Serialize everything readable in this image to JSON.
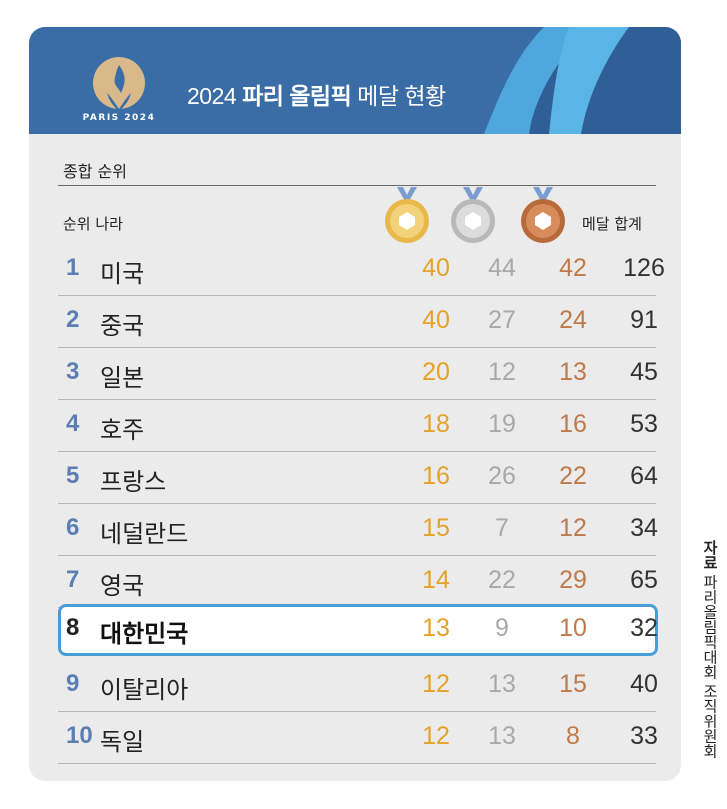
{
  "header": {
    "logo_text": "PARIS 2024",
    "title_prefix": "2024 ",
    "title_bold": "파리 올림픽",
    "title_suffix": " 메달 현황"
  },
  "section_label": "종합 순위",
  "columns": {
    "rank_country": "순위  나라",
    "total": "메달 합계"
  },
  "colors": {
    "gold": "#e6a12a",
    "silver": "#a8a8a8",
    "bronze": "#bf7a4a",
    "rank": "#5b7fb4",
    "highlight_border": "#4a9ed8"
  },
  "source": {
    "label": "자료",
    "text": "파리올림픽대회 조직위원회"
  },
  "chart_data": {
    "type": "table",
    "columns": [
      "순위",
      "나라",
      "금",
      "은",
      "동",
      "메달 합계"
    ],
    "rows": [
      {
        "rank": "1",
        "country": "미국",
        "gold": "40",
        "silver": "44",
        "bronze": "42",
        "total": "126"
      },
      {
        "rank": "2",
        "country": "중국",
        "gold": "40",
        "silver": "27",
        "bronze": "24",
        "total": "91"
      },
      {
        "rank": "3",
        "country": "일본",
        "gold": "20",
        "silver": "12",
        "bronze": "13",
        "total": "45"
      },
      {
        "rank": "4",
        "country": "호주",
        "gold": "18",
        "silver": "19",
        "bronze": "16",
        "total": "53"
      },
      {
        "rank": "5",
        "country": "프랑스",
        "gold": "16",
        "silver": "26",
        "bronze": "22",
        "total": "64"
      },
      {
        "rank": "6",
        "country": "네덜란드",
        "gold": "15",
        "silver": "7",
        "bronze": "12",
        "total": "34"
      },
      {
        "rank": "7",
        "country": "영국",
        "gold": "14",
        "silver": "22",
        "bronze": "29",
        "total": "65"
      },
      {
        "rank": "8",
        "country": "대한민국",
        "gold": "13",
        "silver": "9",
        "bronze": "10",
        "total": "32"
      },
      {
        "rank": "9",
        "country": "이탈리아",
        "gold": "12",
        "silver": "13",
        "bronze": "15",
        "total": "40"
      },
      {
        "rank": "10",
        "country": "독일",
        "gold": "12",
        "silver": "13",
        "bronze": "8",
        "total": "33"
      }
    ],
    "highlighted_rank": "8"
  }
}
